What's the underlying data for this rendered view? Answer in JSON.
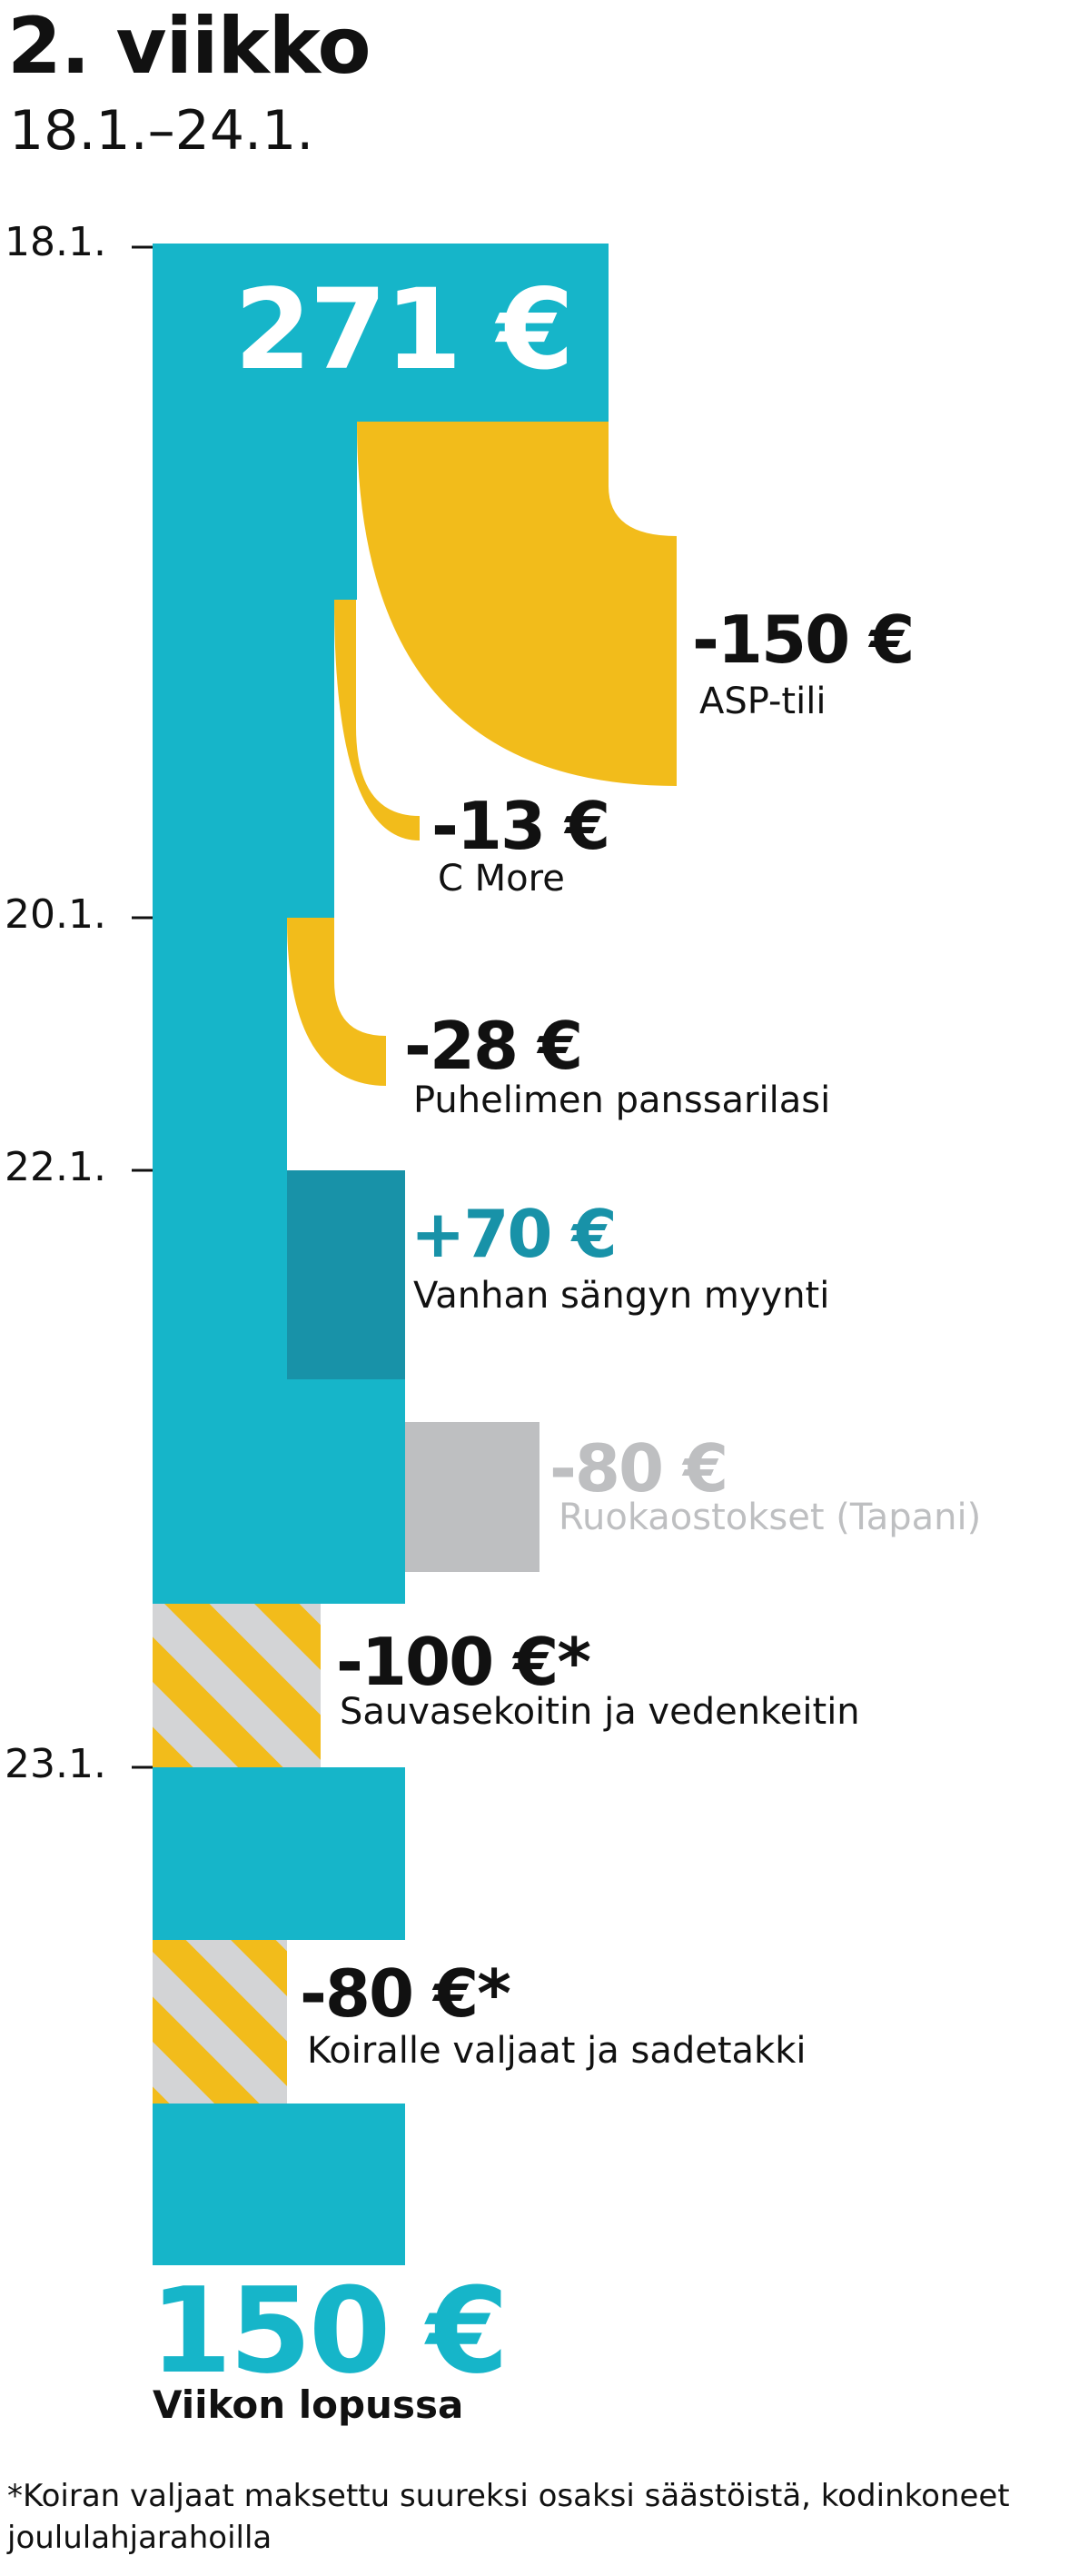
{
  "title": "2. viikko",
  "subtitle": "18.1.–24.1.",
  "date_markers": [
    {
      "label": "18.1."
    },
    {
      "label": "20.1."
    },
    {
      "label": "22.1."
    },
    {
      "label": "23.1."
    }
  ],
  "start": {
    "amount": "271 €"
  },
  "transactions": [
    {
      "amount": "-150 €",
      "label": "ASP-tili"
    },
    {
      "amount": "-13 €",
      "label": "C More"
    },
    {
      "amount": "-28 €",
      "label": "Puhelimen panssarilasi"
    },
    {
      "amount": "+70 €",
      "label": "Vanhan sängyn myynti"
    },
    {
      "amount": "-80 €",
      "label": "Ruokaostokset (Tapani)"
    },
    {
      "amount": "-100 €*",
      "label": "Sauvasekoitin ja vedenkeitin"
    },
    {
      "amount": "-80 €*",
      "label": "Koiralle valjaat ja sadetakki"
    }
  ],
  "end": {
    "amount": "150 €",
    "label": "Viikon lopussa"
  },
  "footnote": "*Koiran valjaat maksettu suureksi osaksi säästöistä, kodinkoneet joululahjarahoilla",
  "colors": {
    "balance": "#16B5C9",
    "income": "#1892A8",
    "expense": "#F2BC1B",
    "minor": "#BEBFC1",
    "stripe_grey": "#D3D4D6",
    "text": "#111111",
    "income_text": "#1892A8",
    "minor_text": "#BEBFC1"
  }
}
